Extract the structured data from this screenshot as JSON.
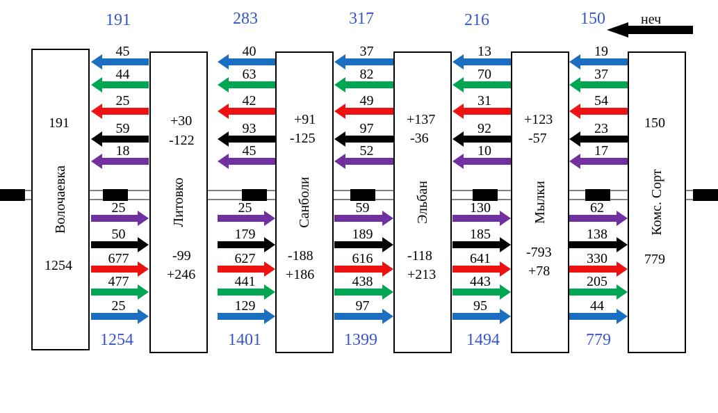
{
  "colors": {
    "blue": "#1a6fc0",
    "green": "#00a651",
    "red": "#ee1111",
    "black": "#000000",
    "purple": "#7030a0",
    "total_text": "#3655c9"
  },
  "direction": {
    "label": "неч"
  },
  "stations": [
    {
      "name": "Волочаевка",
      "top_value": "191",
      "bottom_value": "1254"
    },
    {
      "name": "Литовко",
      "top_values": [
        "+30",
        "-122"
      ],
      "bottom_values": [
        "-99",
        "+246"
      ]
    },
    {
      "name": "Санболи",
      "top_values": [
        "+91",
        "-125"
      ],
      "bottom_values": [
        "-188",
        "+186"
      ]
    },
    {
      "name": "Эльбан",
      "top_values": [
        "+137",
        "-36"
      ],
      "bottom_values": [
        "-118",
        "+213"
      ]
    },
    {
      "name": "Мылки",
      "top_values": [
        "+123",
        "-57"
      ],
      "bottom_values": [
        "-793",
        "+78"
      ]
    },
    {
      "name": "Комс. Сорт",
      "top_value": "150",
      "bottom_value": "779"
    }
  ],
  "segments": [
    {
      "top_total": "191",
      "bottom_total": "1254",
      "left_arrows": [
        {
          "color": "blue",
          "value": "45"
        },
        {
          "color": "green",
          "value": "44"
        },
        {
          "color": "red",
          "value": "25"
        },
        {
          "color": "black",
          "value": "59"
        },
        {
          "color": "purple",
          "value": "18"
        }
      ],
      "right_arrows": [
        {
          "color": "purple",
          "value": "25"
        },
        {
          "color": "black",
          "value": "50"
        },
        {
          "color": "red",
          "value": "677"
        },
        {
          "color": "green",
          "value": "477"
        },
        {
          "color": "blue",
          "value": "25"
        }
      ]
    },
    {
      "top_total": "283",
      "bottom_total": "1401",
      "left_arrows": [
        {
          "color": "blue",
          "value": "40"
        },
        {
          "color": "green",
          "value": "63"
        },
        {
          "color": "red",
          "value": "42"
        },
        {
          "color": "black",
          "value": "93"
        },
        {
          "color": "purple",
          "value": "45"
        }
      ],
      "right_arrows": [
        {
          "color": "purple",
          "value": "25"
        },
        {
          "color": "black",
          "value": "179"
        },
        {
          "color": "red",
          "value": "627"
        },
        {
          "color": "green",
          "value": "441"
        },
        {
          "color": "blue",
          "value": "129"
        }
      ]
    },
    {
      "top_total": "317",
      "bottom_total": "1399",
      "left_arrows": [
        {
          "color": "blue",
          "value": "37"
        },
        {
          "color": "green",
          "value": "82"
        },
        {
          "color": "red",
          "value": "49"
        },
        {
          "color": "black",
          "value": "97"
        },
        {
          "color": "purple",
          "value": "52"
        }
      ],
      "right_arrows": [
        {
          "color": "purple",
          "value": "59"
        },
        {
          "color": "black",
          "value": "189"
        },
        {
          "color": "red",
          "value": "616"
        },
        {
          "color": "green",
          "value": "438"
        },
        {
          "color": "blue",
          "value": "97"
        }
      ]
    },
    {
      "top_total": "216",
      "bottom_total": "1494",
      "left_arrows": [
        {
          "color": "blue",
          "value": "13"
        },
        {
          "color": "green",
          "value": "70"
        },
        {
          "color": "red",
          "value": "31"
        },
        {
          "color": "black",
          "value": "92"
        },
        {
          "color": "purple",
          "value": "10"
        }
      ],
      "right_arrows": [
        {
          "color": "purple",
          "value": "130"
        },
        {
          "color": "black",
          "value": "185"
        },
        {
          "color": "red",
          "value": "641"
        },
        {
          "color": "green",
          "value": "443"
        },
        {
          "color": "blue",
          "value": "95"
        }
      ]
    },
    {
      "top_total": "150",
      "bottom_total": "779",
      "left_arrows": [
        {
          "color": "blue",
          "value": "19"
        },
        {
          "color": "green",
          "value": "37"
        },
        {
          "color": "red",
          "value": "54"
        },
        {
          "color": "black",
          "value": "23"
        },
        {
          "color": "purple",
          "value": "17"
        }
      ],
      "right_arrows": [
        {
          "color": "purple",
          "value": "62"
        },
        {
          "color": "black",
          "value": "138"
        },
        {
          "color": "red",
          "value": "330"
        },
        {
          "color": "green",
          "value": "205"
        },
        {
          "color": "blue",
          "value": "44"
        }
      ]
    }
  ]
}
